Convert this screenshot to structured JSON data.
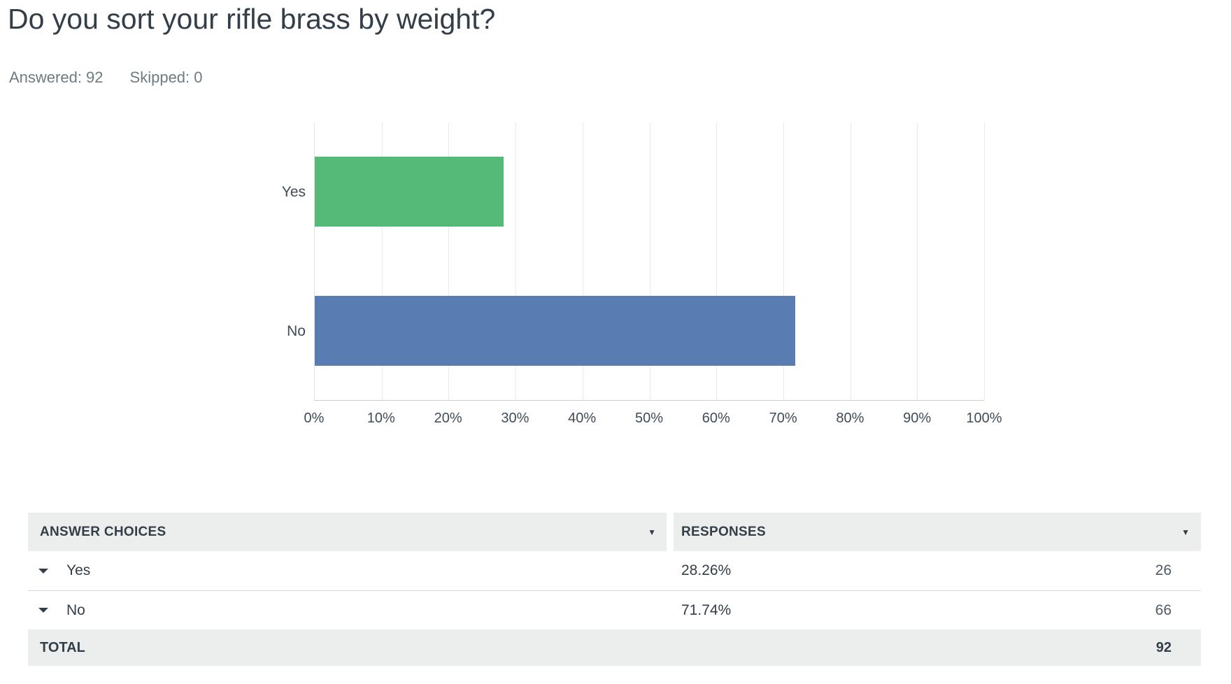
{
  "header": {
    "title": "Do you sort your rifle brass by weight?",
    "answered": "Answered: 92",
    "skipped": "Skipped: 0"
  },
  "chart_data": {
    "type": "bar",
    "orientation": "horizontal",
    "title": "",
    "categories": [
      "Yes",
      "No"
    ],
    "values": [
      28.26,
      71.74
    ],
    "series": [
      {
        "name": "Responses",
        "values": [
          28.26,
          71.74
        ]
      }
    ],
    "bar_colors": [
      "#55B977",
      "#597CB2"
    ],
    "xlabel": "",
    "ylabel": "",
    "xlim": [
      0,
      100
    ],
    "x_ticks": [
      "0%",
      "10%",
      "20%",
      "30%",
      "40%",
      "50%",
      "60%",
      "70%",
      "80%",
      "90%",
      "100%"
    ],
    "grid": "vertical",
    "legend": "none"
  },
  "table": {
    "columns": [
      {
        "label": "ANSWER CHOICES",
        "sort_icon": "caret-down"
      },
      {
        "label": "RESPONSES",
        "sort_icon": "caret-down"
      }
    ],
    "rows": [
      {
        "expand_icon": "caret-down",
        "choice": "Yes",
        "percent": "28.26%",
        "count": "26"
      },
      {
        "expand_icon": "caret-down",
        "choice": "No",
        "percent": "71.74%",
        "count": "66"
      }
    ],
    "total": {
      "label": "TOTAL",
      "value": "92"
    }
  },
  "icons": {
    "sort_caret": "▼"
  },
  "colors": {
    "bar_yes": "#55B977",
    "bar_no": "#597CB2",
    "table_header_bg": "#ECEEED",
    "text_dark": "#333E48",
    "text_gray": "#6E7B83",
    "gridline": "#E9EAEB"
  }
}
